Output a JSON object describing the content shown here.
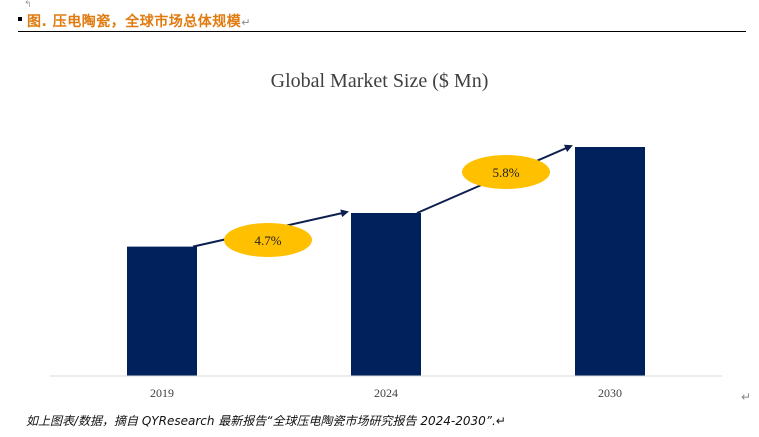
{
  "caption": {
    "text": "图.   压电陶瓷，全球市场总体规模",
    "para_mark": "↵"
  },
  "chart_data": {
    "type": "bar",
    "title": "Global Market Size ($ Mn)",
    "categories": [
      "2019",
      "2024",
      "2030"
    ],
    "values": [
      1000,
      1260,
      1770
    ],
    "ylim": [
      0,
      1770
    ],
    "xlabel": "",
    "ylabel": "",
    "grid": false,
    "legend": "none",
    "bar_color": "#00215b",
    "growth_annotations": [
      {
        "from": "2019",
        "to": "2024",
        "label": "4.7%"
      },
      {
        "from": "2024",
        "to": "2030",
        "label": "5.8%"
      }
    ],
    "annotation_color": "#ffc000",
    "arrow_color": "#0d1f4e"
  },
  "right_para_mark": "↵",
  "source_note": "如上图表/数据，摘自 QYResearch 最新报告“全球压电陶瓷市场研究报告 2024-2030”.↵"
}
